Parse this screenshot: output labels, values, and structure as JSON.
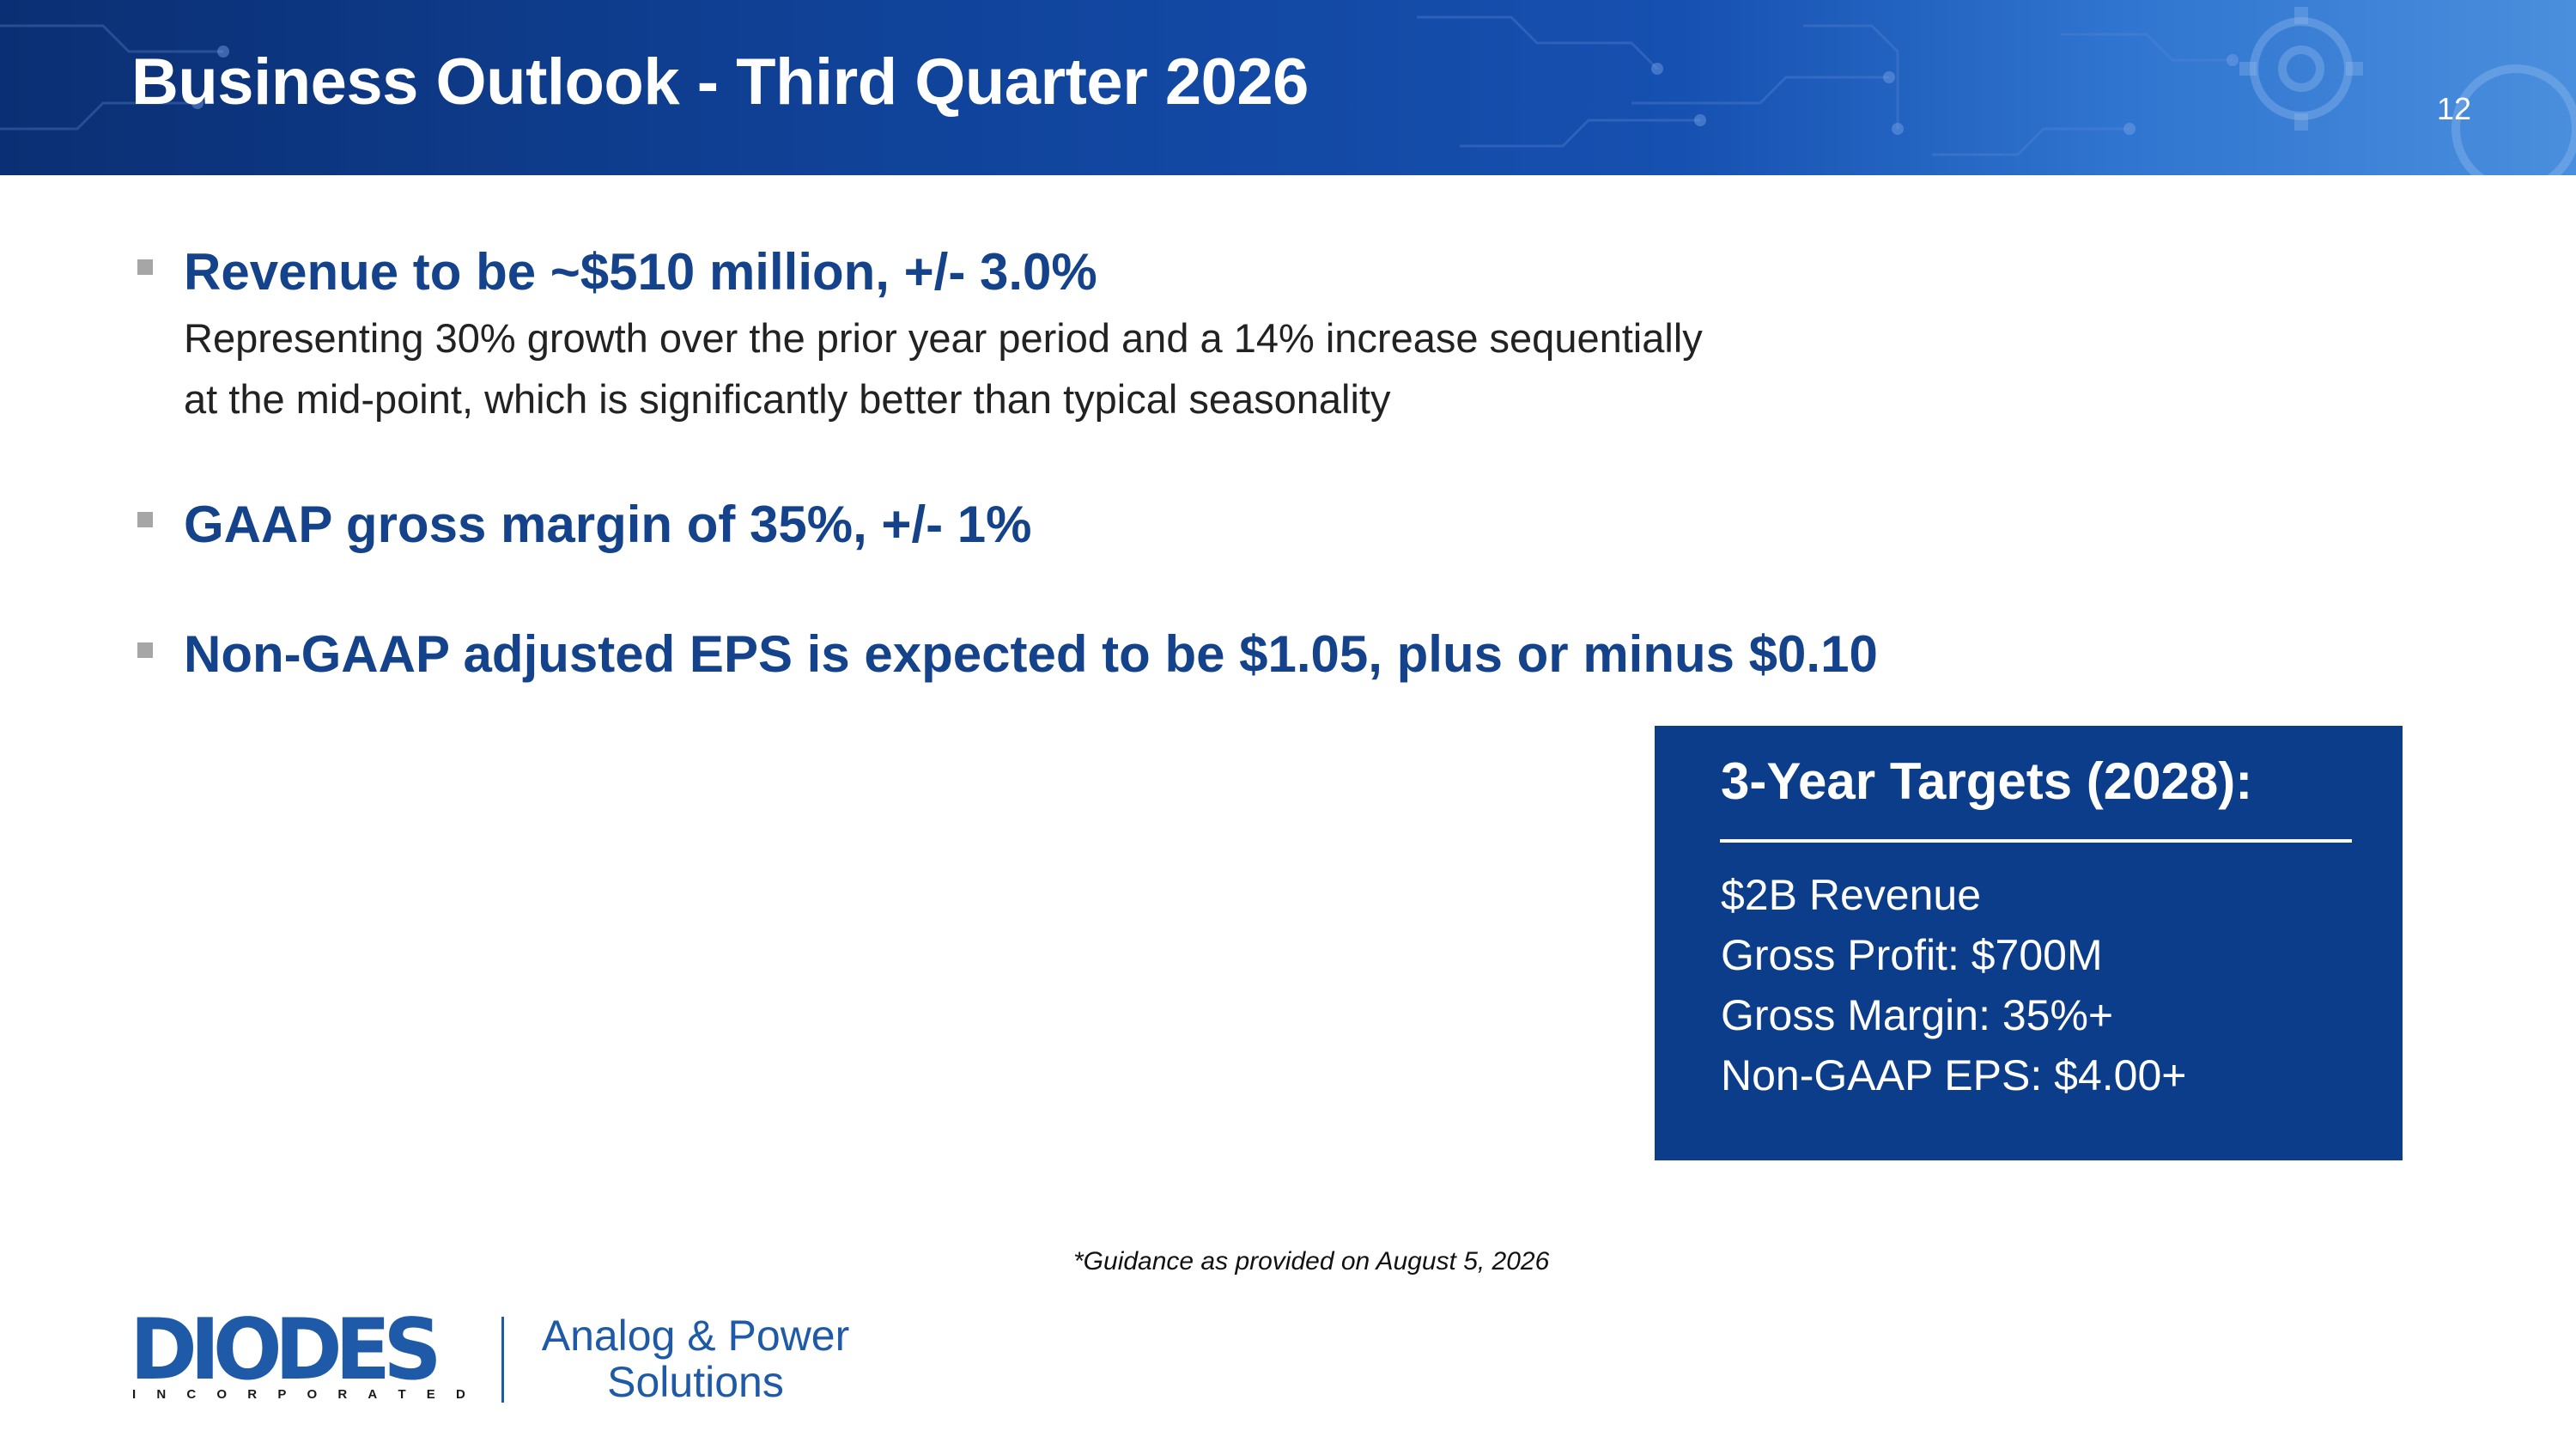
{
  "header": {
    "title": "Business Outlook - Third Quarter 2026",
    "page_number": "12"
  },
  "bullets": [
    {
      "heading": "Revenue to be ~$510 million, +/- 3.0%",
      "body": [
        "Representing 30% growth over the prior year period and a 14% increase sequentially",
        "at the mid-point, which is significantly better than typical seasonality"
      ]
    },
    {
      "heading": "GAAP gross margin of 35%, +/- 1%"
    },
    {
      "heading": "Non-GAAP adjusted EPS is expected to be $1.05, plus or minus $0.10"
    }
  ],
  "targets": {
    "title": "3-Year Targets (2028):",
    "items": [
      "$2B Revenue",
      "Gross Profit: $700M",
      "Gross Margin: 35%+",
      "Non-GAAP EPS: $4.00+"
    ]
  },
  "footnote": "*Guidance as provided on August 5, 2026",
  "logo": {
    "wordmark": "DIODES",
    "subtext": "INCORPORATED",
    "tagline_line1": "Analog & Power",
    "tagline_line2": "Solutions"
  },
  "colors": {
    "header_blue": "#10439a",
    "heading_blue": "#14438c",
    "box_blue": "#0c3d8a",
    "logo_blue": "#1f5aa8",
    "bullet_gray": "#a6a6a6"
  }
}
